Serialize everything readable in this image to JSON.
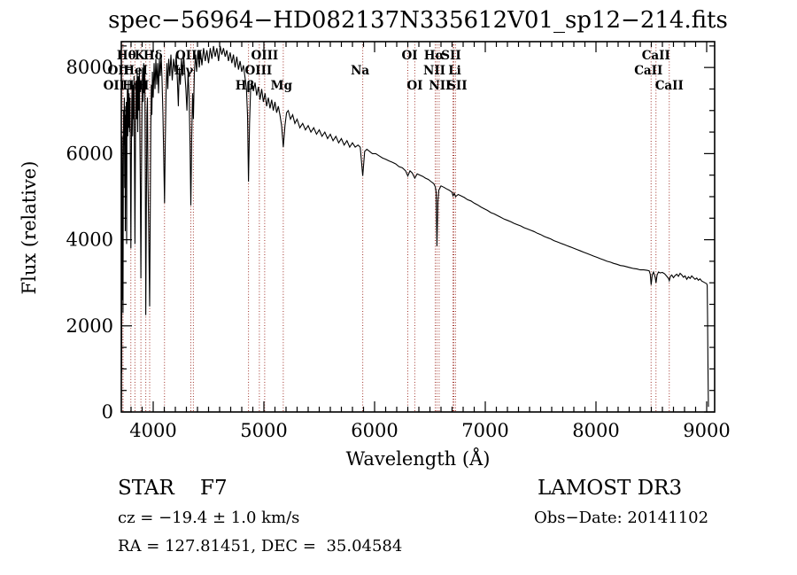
{
  "chart_data": {
    "type": "line",
    "title": "spec−56964−HD082137N335612V01_sp12−214.fits",
    "xlabel": "Wavelength (Å)",
    "ylabel": "Flux (relative)",
    "xlim": [
      3712,
      9072
    ],
    "ylim": [
      0,
      8600
    ],
    "x_ticks": [
      4000,
      5000,
      6000,
      7000,
      8000,
      9000
    ],
    "x_minor_step": 100,
    "y_ticks": [
      0,
      2000,
      4000,
      6000,
      8000
    ],
    "y_minor_step": 500,
    "grid": false,
    "spectrum_color": "#000000",
    "line_marker_color": "#a03028",
    "spectral_lines": [
      {
        "wavelength": 3727,
        "label": "OII",
        "row": 2,
        "dx": -5
      },
      {
        "wavelength": 3727,
        "label": "OII",
        "row": 3,
        "dx": -10
      },
      {
        "wavelength": 3798,
        "label": "Hθ",
        "row": 1,
        "dx": -5
      },
      {
        "wavelength": 3835,
        "label": "Hη",
        "row": 3,
        "dx": -3
      },
      {
        "wavelength": 3889,
        "label": "HeI",
        "row": 2,
        "dx": -6
      },
      {
        "wavelength": 3933,
        "label": "K",
        "row": 1,
        "dx": -7
      },
      {
        "wavelength": 3968,
        "label": "H",
        "row": 3,
        "dx": -7
      },
      {
        "wavelength": 4102,
        "label": "Hδ",
        "row": 1,
        "dx": -13
      },
      {
        "wavelength": 4340,
        "label": "Hγ",
        "row": 2,
        "dx": -8
      },
      {
        "wavelength": 4363,
        "label": "OIII",
        "row": 1,
        "dx": -5
      },
      {
        "wavelength": 4861,
        "label": "Hβ",
        "row": 3,
        "dx": -4
      },
      {
        "wavelength": 4959,
        "label": "OIII",
        "row": 2,
        "dx": -1
      },
      {
        "wavelength": 5007,
        "label": "OIII",
        "row": 1,
        "dx": 0
      },
      {
        "wavelength": 5175,
        "label": "Mg",
        "row": 3,
        "dx": -2
      },
      {
        "wavelength": 5893,
        "label": "Na",
        "row": 2,
        "dx": -3
      },
      {
        "wavelength": 6300,
        "label": "OI",
        "row": 1,
        "dx": 2
      },
      {
        "wavelength": 6363,
        "label": "OI",
        "row": 3,
        "dx": 0
      },
      {
        "wavelength": 6548,
        "label": "NII",
        "row": 2,
        "dx": -1
      },
      {
        "wavelength": 6563,
        "label": "Hα",
        "row": 1,
        "dx": -3
      },
      {
        "wavelength": 6583,
        "label": "NII",
        "row": 3,
        "dx": 1
      },
      {
        "wavelength": 6708,
        "label": "Li",
        "row": 2,
        "dx": 2
      },
      {
        "wavelength": 6716,
        "label": "SII",
        "row": 1,
        "dx": -3
      },
      {
        "wavelength": 6731,
        "label": "SII",
        "row": 3,
        "dx": 2
      },
      {
        "wavelength": 8498,
        "label": "CaII",
        "row": 2,
        "dx": -3
      },
      {
        "wavelength": 8542,
        "label": "CaII",
        "row": 1,
        "dx": 0
      },
      {
        "wavelength": 8662,
        "label": "CaII",
        "row": 3,
        "dx": 0
      }
    ],
    "spectrum": [
      [
        3712,
        150
      ],
      [
        3713,
        3500
      ],
      [
        3714,
        900
      ],
      [
        3716,
        5200
      ],
      [
        3718,
        2600
      ],
      [
        3720,
        6400
      ],
      [
        3723,
        5000
      ],
      [
        3727,
        2300
      ],
      [
        3730,
        5600
      ],
      [
        3733,
        7000
      ],
      [
        3736,
        6200
      ],
      [
        3739,
        7300
      ],
      [
        3742,
        5200
      ],
      [
        3745,
        7100
      ],
      [
        3748,
        4200
      ],
      [
        3751,
        6900
      ],
      [
        3754,
        5800
      ],
      [
        3757,
        7200
      ],
      [
        3760,
        3900
      ],
      [
        3763,
        6800
      ],
      [
        3766,
        7500
      ],
      [
        3770,
        6400
      ],
      [
        3774,
        7700
      ],
      [
        3778,
        6600
      ],
      [
        3782,
        7400
      ],
      [
        3786,
        6500
      ],
      [
        3790,
        7300
      ],
      [
        3794,
        5600
      ],
      [
        3798,
        3800
      ],
      [
        3802,
        5800
      ],
      [
        3806,
        7200
      ],
      [
        3810,
        7700
      ],
      [
        3814,
        6400
      ],
      [
        3818,
        7600
      ],
      [
        3822,
        6800
      ],
      [
        3826,
        7800
      ],
      [
        3830,
        6000
      ],
      [
        3835,
        3900
      ],
      [
        3840,
        6400
      ],
      [
        3845,
        7700
      ],
      [
        3850,
        6800
      ],
      [
        3855,
        7900
      ],
      [
        3860,
        6500
      ],
      [
        3865,
        7800
      ],
      [
        3870,
        7000
      ],
      [
        3875,
        8000
      ],
      [
        3880,
        6300
      ],
      [
        3884,
        5200
      ],
      [
        3889,
        3100
      ],
      [
        3894,
        5600
      ],
      [
        3899,
        7200
      ],
      [
        3904,
        8000
      ],
      [
        3909,
        7200
      ],
      [
        3914,
        8100
      ],
      [
        3919,
        7400
      ],
      [
        3924,
        8000
      ],
      [
        3929,
        5600
      ],
      [
        3933,
        2250
      ],
      [
        3938,
        4800
      ],
      [
        3943,
        6900
      ],
      [
        3948,
        7300
      ],
      [
        3953,
        5400
      ],
      [
        3958,
        4400
      ],
      [
        3963,
        3400
      ],
      [
        3968,
        2450
      ],
      [
        3973,
        4400
      ],
      [
        3978,
        6600
      ],
      [
        3983,
        7600
      ],
      [
        3988,
        6900
      ],
      [
        3993,
        7900
      ],
      [
        4000,
        7300
      ],
      [
        4008,
        8100
      ],
      [
        4016,
        7500
      ],
      [
        4024,
        8200
      ],
      [
        4032,
        7600
      ],
      [
        4040,
        8100
      ],
      [
        4048,
        7400
      ],
      [
        4056,
        8200
      ],
      [
        4064,
        7800
      ],
      [
        4072,
        8300
      ],
      [
        4080,
        7700
      ],
      [
        4088,
        6900
      ],
      [
        4095,
        5900
      ],
      [
        4102,
        4850
      ],
      [
        4109,
        6200
      ],
      [
        4116,
        7400
      ],
      [
        4124,
        8100
      ],
      [
        4132,
        7500
      ],
      [
        4140,
        8200
      ],
      [
        4150,
        7800
      ],
      [
        4160,
        8300
      ],
      [
        4172,
        7700
      ],
      [
        4184,
        8200
      ],
      [
        4196,
        7900
      ],
      [
        4208,
        8300
      ],
      [
        4220,
        7600
      ],
      [
        4227,
        7100
      ],
      [
        4235,
        8000
      ],
      [
        4245,
        7600
      ],
      [
        4255,
        8200
      ],
      [
        4265,
        7800
      ],
      [
        4275,
        8300
      ],
      [
        4285,
        7900
      ],
      [
        4295,
        7500
      ],
      [
        4305,
        7000
      ],
      [
        4315,
        7900
      ],
      [
        4325,
        7300
      ],
      [
        4333,
        6200
      ],
      [
        4340,
        4800
      ],
      [
        4348,
        6400
      ],
      [
        4356,
        7400
      ],
      [
        4363,
        6800
      ],
      [
        4372,
        7900
      ],
      [
        4382,
        8300
      ],
      [
        4392,
        7900
      ],
      [
        4404,
        8400
      ],
      [
        4416,
        8000
      ],
      [
        4428,
        8350
      ],
      [
        4440,
        8050
      ],
      [
        4455,
        8450
      ],
      [
        4470,
        8150
      ],
      [
        4485,
        8400
      ],
      [
        4500,
        8100
      ],
      [
        4515,
        8450
      ],
      [
        4530,
        8200
      ],
      [
        4545,
        8500
      ],
      [
        4560,
        8250
      ],
      [
        4575,
        8450
      ],
      [
        4590,
        8150
      ],
      [
        4605,
        8500
      ],
      [
        4620,
        8300
      ],
      [
        4635,
        8450
      ],
      [
        4650,
        8250
      ],
      [
        4665,
        8400
      ],
      [
        4680,
        8150
      ],
      [
        4695,
        8350
      ],
      [
        4710,
        8100
      ],
      [
        4725,
        8300
      ],
      [
        4740,
        8000
      ],
      [
        4755,
        8250
      ],
      [
        4770,
        7950
      ],
      [
        4785,
        8150
      ],
      [
        4800,
        7900
      ],
      [
        4815,
        8050
      ],
      [
        4830,
        7750
      ],
      [
        4842,
        7500
      ],
      [
        4852,
        6900
      ],
      [
        4861,
        5350
      ],
      [
        4870,
        6700
      ],
      [
        4880,
        7500
      ],
      [
        4890,
        7700
      ],
      [
        4905,
        7450
      ],
      [
        4920,
        7650
      ],
      [
        4935,
        7350
      ],
      [
        4950,
        7550
      ],
      [
        4965,
        7250
      ],
      [
        4980,
        7500
      ],
      [
        4995,
        7200
      ],
      [
        5010,
        7400
      ],
      [
        5025,
        7100
      ],
      [
        5040,
        7300
      ],
      [
        5055,
        7050
      ],
      [
        5070,
        7250
      ],
      [
        5085,
        7000
      ],
      [
        5100,
        7200
      ],
      [
        5115,
        6950
      ],
      [
        5130,
        7100
      ],
      [
        5145,
        6900
      ],
      [
        5160,
        6650
      ],
      [
        5175,
        6150
      ],
      [
        5190,
        6650
      ],
      [
        5205,
        6950
      ],
      [
        5220,
        7000
      ],
      [
        5240,
        6800
      ],
      [
        5260,
        6900
      ],
      [
        5280,
        6700
      ],
      [
        5300,
        6800
      ],
      [
        5325,
        6600
      ],
      [
        5350,
        6700
      ],
      [
        5375,
        6550
      ],
      [
        5400,
        6650
      ],
      [
        5425,
        6500
      ],
      [
        5450,
        6600
      ],
      [
        5475,
        6450
      ],
      [
        5500,
        6550
      ],
      [
        5525,
        6400
      ],
      [
        5550,
        6500
      ],
      [
        5575,
        6350
      ],
      [
        5600,
        6450
      ],
      [
        5625,
        6300
      ],
      [
        5650,
        6400
      ],
      [
        5675,
        6250
      ],
      [
        5700,
        6350
      ],
      [
        5725,
        6200
      ],
      [
        5750,
        6300
      ],
      [
        5775,
        6150
      ],
      [
        5800,
        6250
      ],
      [
        5825,
        6150
      ],
      [
        5850,
        6200
      ],
      [
        5870,
        6150
      ],
      [
        5893,
        5480
      ],
      [
        5910,
        6050
      ],
      [
        5930,
        6100
      ],
      [
        5955,
        6050
      ],
      [
        5980,
        6000
      ],
      [
        6010,
        6000
      ],
      [
        6040,
        5950
      ],
      [
        6070,
        5900
      ],
      [
        6100,
        5870
      ],
      [
        6130,
        5830
      ],
      [
        6160,
        5800
      ],
      [
        6190,
        5760
      ],
      [
        6220,
        5700
      ],
      [
        6250,
        5670
      ],
      [
        6280,
        5600
      ],
      [
        6300,
        5480
      ],
      [
        6320,
        5600
      ],
      [
        6340,
        5550
      ],
      [
        6363,
        5430
      ],
      [
        6385,
        5530
      ],
      [
        6410,
        5500
      ],
      [
        6435,
        5470
      ],
      [
        6460,
        5430
      ],
      [
        6485,
        5400
      ],
      [
        6510,
        5350
      ],
      [
        6535,
        5300
      ],
      [
        6548,
        5230
      ],
      [
        6556,
        5100
      ],
      [
        6563,
        3850
      ],
      [
        6572,
        4900
      ],
      [
        6580,
        5150
      ],
      [
        6600,
        5250
      ],
      [
        6625,
        5220
      ],
      [
        6650,
        5180
      ],
      [
        6675,
        5150
      ],
      [
        6700,
        5100
      ],
      [
        6708,
        5020
      ],
      [
        6720,
        5080
      ],
      [
        6731,
        5000
      ],
      [
        6755,
        5050
      ],
      [
        6780,
        5020
      ],
      [
        6810,
        4980
      ],
      [
        6840,
        4930
      ],
      [
        6870,
        4900
      ],
      [
        6900,
        4850
      ],
      [
        6930,
        4810
      ],
      [
        6960,
        4760
      ],
      [
        6990,
        4720
      ],
      [
        7020,
        4680
      ],
      [
        7050,
        4630
      ],
      [
        7080,
        4600
      ],
      [
        7110,
        4560
      ],
      [
        7140,
        4520
      ],
      [
        7170,
        4480
      ],
      [
        7200,
        4450
      ],
      [
        7230,
        4420
      ],
      [
        7260,
        4380
      ],
      [
        7290,
        4350
      ],
      [
        7320,
        4320
      ],
      [
        7350,
        4280
      ],
      [
        7380,
        4250
      ],
      [
        7410,
        4220
      ],
      [
        7440,
        4190
      ],
      [
        7470,
        4150
      ],
      [
        7500,
        4120
      ],
      [
        7530,
        4080
      ],
      [
        7560,
        4050
      ],
      [
        7590,
        4020
      ],
      [
        7620,
        3980
      ],
      [
        7650,
        3950
      ],
      [
        7680,
        3920
      ],
      [
        7710,
        3890
      ],
      [
        7740,
        3860
      ],
      [
        7770,
        3830
      ],
      [
        7800,
        3800
      ],
      [
        7830,
        3770
      ],
      [
        7860,
        3740
      ],
      [
        7890,
        3710
      ],
      [
        7920,
        3680
      ],
      [
        7950,
        3650
      ],
      [
        7980,
        3620
      ],
      [
        8010,
        3590
      ],
      [
        8040,
        3560
      ],
      [
        8070,
        3530
      ],
      [
        8100,
        3500
      ],
      [
        8130,
        3480
      ],
      [
        8160,
        3450
      ],
      [
        8190,
        3430
      ],
      [
        8220,
        3400
      ],
      [
        8250,
        3390
      ],
      [
        8280,
        3370
      ],
      [
        8310,
        3350
      ],
      [
        8340,
        3330
      ],
      [
        8370,
        3320
      ],
      [
        8400,
        3300
      ],
      [
        8430,
        3300
      ],
      [
        8460,
        3290
      ],
      [
        8480,
        3280
      ],
      [
        8490,
        3200
      ],
      [
        8498,
        2950
      ],
      [
        8508,
        3180
      ],
      [
        8520,
        3250
      ],
      [
        8535,
        3120
      ],
      [
        8542,
        3000
      ],
      [
        8552,
        3180
      ],
      [
        8565,
        3250
      ],
      [
        8580,
        3230
      ],
      [
        8600,
        3240
      ],
      [
        8620,
        3210
      ],
      [
        8640,
        3150
      ],
      [
        8655,
        3100
      ],
      [
        8662,
        3050
      ],
      [
        8672,
        3150
      ],
      [
        8685,
        3180
      ],
      [
        8700,
        3120
      ],
      [
        8715,
        3170
      ],
      [
        8730,
        3200
      ],
      [
        8745,
        3150
      ],
      [
        8760,
        3220
      ],
      [
        8775,
        3180
      ],
      [
        8790,
        3130
      ],
      [
        8805,
        3160
      ],
      [
        8820,
        3080
      ],
      [
        8835,
        3140
      ],
      [
        8850,
        3100
      ],
      [
        8865,
        3160
      ],
      [
        8880,
        3120
      ],
      [
        8895,
        3080
      ],
      [
        8910,
        3110
      ],
      [
        8925,
        3060
      ],
      [
        8940,
        3090
      ],
      [
        8955,
        3040
      ],
      [
        8970,
        3020
      ],
      [
        8985,
        3000
      ],
      [
        9000,
        2980
      ],
      [
        9005,
        2940
      ],
      [
        9008,
        2200
      ],
      [
        9011,
        1200
      ],
      [
        9014,
        400
      ],
      [
        9016,
        120
      ]
    ]
  },
  "annotations": {
    "class_line": "STAR    F7",
    "cz_line": "cz = −19.4 ± 1.0 km/s",
    "radec_line": "RA = 127.81451, DEC =  35.04584",
    "survey": "LAMOST DR3",
    "obsdate": "Obs−Date: 20141102"
  }
}
